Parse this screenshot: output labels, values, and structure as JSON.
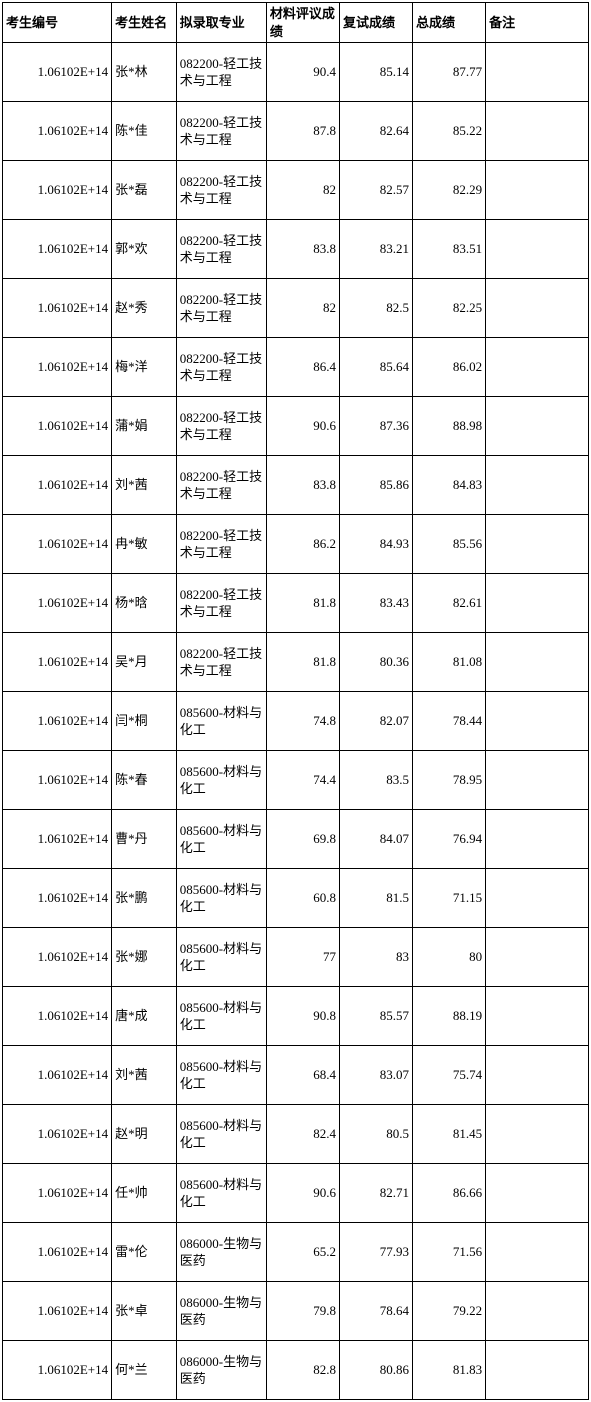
{
  "table": {
    "columns": [
      {
        "key": "id",
        "label": "考生编号",
        "class": "col-id"
      },
      {
        "key": "name",
        "label": "考生姓名",
        "class": "col-name"
      },
      {
        "key": "major",
        "label": "拟录取专业",
        "class": "col-major"
      },
      {
        "key": "mat",
        "label": "材料评议成绩",
        "class": "col-mat"
      },
      {
        "key": "ret",
        "label": "复试成绩",
        "class": "col-ret"
      },
      {
        "key": "total",
        "label": "总成绩",
        "class": "col-total"
      },
      {
        "key": "note",
        "label": "备注",
        "class": "col-note"
      }
    ],
    "rows": [
      {
        "id": "1.06102E+14",
        "name": "张*林",
        "major": "082200-轻工技术与工程",
        "mat": "90.4",
        "ret": "85.14",
        "total": "87.77",
        "note": ""
      },
      {
        "id": "1.06102E+14",
        "name": "陈*佳",
        "major": "082200-轻工技术与工程",
        "mat": "87.8",
        "ret": "82.64",
        "total": "85.22",
        "note": ""
      },
      {
        "id": "1.06102E+14",
        "name": "张*磊",
        "major": "082200-轻工技术与工程",
        "mat": "82",
        "ret": "82.57",
        "total": "82.29",
        "note": ""
      },
      {
        "id": "1.06102E+14",
        "name": "郭*欢",
        "major": "082200-轻工技术与工程",
        "mat": "83.8",
        "ret": "83.21",
        "total": "83.51",
        "note": ""
      },
      {
        "id": "1.06102E+14",
        "name": "赵*秀",
        "major": "082200-轻工技术与工程",
        "mat": "82",
        "ret": "82.5",
        "total": "82.25",
        "note": ""
      },
      {
        "id": "1.06102E+14",
        "name": "梅*洋",
        "major": "082200-轻工技术与工程",
        "mat": "86.4",
        "ret": "85.64",
        "total": "86.02",
        "note": ""
      },
      {
        "id": "1.06102E+14",
        "name": "蒲*娟",
        "major": "082200-轻工技术与工程",
        "mat": "90.6",
        "ret": "87.36",
        "total": "88.98",
        "note": ""
      },
      {
        "id": "1.06102E+14",
        "name": "刘*茜",
        "major": "082200-轻工技术与工程",
        "mat": "83.8",
        "ret": "85.86",
        "total": "84.83",
        "note": ""
      },
      {
        "id": "1.06102E+14",
        "name": "冉*敏",
        "major": "082200-轻工技术与工程",
        "mat": "86.2",
        "ret": "84.93",
        "total": "85.56",
        "note": ""
      },
      {
        "id": "1.06102E+14",
        "name": "杨*晗",
        "major": "082200-轻工技术与工程",
        "mat": "81.8",
        "ret": "83.43",
        "total": "82.61",
        "note": ""
      },
      {
        "id": "1.06102E+14",
        "name": "吴*月",
        "major": "082200-轻工技术与工程",
        "mat": "81.8",
        "ret": "80.36",
        "total": "81.08",
        "note": ""
      },
      {
        "id": "1.06102E+14",
        "name": "闫*桐",
        "major": "085600-材料与化工",
        "mat": "74.8",
        "ret": "82.07",
        "total": "78.44",
        "note": ""
      },
      {
        "id": "1.06102E+14",
        "name": "陈*春",
        "major": "085600-材料与化工",
        "mat": "74.4",
        "ret": "83.5",
        "total": "78.95",
        "note": ""
      },
      {
        "id": "1.06102E+14",
        "name": "曹*丹",
        "major": "085600-材料与化工",
        "mat": "69.8",
        "ret": "84.07",
        "total": "76.94",
        "note": ""
      },
      {
        "id": "1.06102E+14",
        "name": "张*鹏",
        "major": "085600-材料与化工",
        "mat": "60.8",
        "ret": "81.5",
        "total": "71.15",
        "note": ""
      },
      {
        "id": "1.06102E+14",
        "name": "张*娜",
        "major": "085600-材料与化工",
        "mat": "77",
        "ret": "83",
        "total": "80",
        "note": ""
      },
      {
        "id": "1.06102E+14",
        "name": "唐*成",
        "major": "085600-材料与化工",
        "mat": "90.8",
        "ret": "85.57",
        "total": "88.19",
        "note": ""
      },
      {
        "id": "1.06102E+14",
        "name": "刘*茜",
        "major": "085600-材料与化工",
        "mat": "68.4",
        "ret": "83.07",
        "total": "75.74",
        "note": ""
      },
      {
        "id": "1.06102E+14",
        "name": "赵*明",
        "major": "085600-材料与化工",
        "mat": "82.4",
        "ret": "80.5",
        "total": "81.45",
        "note": ""
      },
      {
        "id": "1.06102E+14",
        "name": "任*帅",
        "major": "085600-材料与化工",
        "mat": "90.6",
        "ret": "82.71",
        "total": "86.66",
        "note": ""
      },
      {
        "id": "1.06102E+14",
        "name": "雷*伦",
        "major": "086000-生物与医药",
        "mat": "65.2",
        "ret": "77.93",
        "total": "71.56",
        "note": ""
      },
      {
        "id": "1.06102E+14",
        "name": "张*卓",
        "major": "086000-生物与医药",
        "mat": "79.8",
        "ret": "78.64",
        "total": "79.22",
        "note": ""
      },
      {
        "id": "1.06102E+14",
        "name": "何*兰",
        "major": "086000-生物与医药",
        "mat": "82.8",
        "ret": "80.86",
        "total": "81.83",
        "note": ""
      }
    ]
  }
}
